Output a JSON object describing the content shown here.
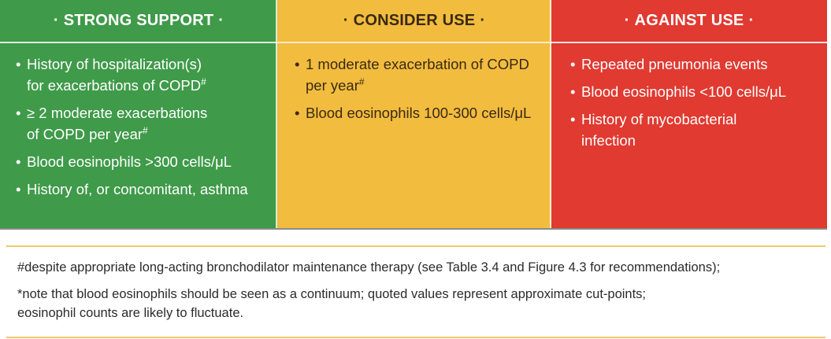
{
  "columns": {
    "strong": {
      "header": "STRONG SUPPORT",
      "items": [
        {
          "lines": [
            "History of hospitalization(s)",
            "for exacerbations of COPD"
          ],
          "sup": "#"
        },
        {
          "lines": [
            "≥ 2 moderate exacerbations",
            "of COPD per year"
          ],
          "sup": "#"
        },
        {
          "lines": [
            "Blood eosinophils >300 cells/μL"
          ],
          "sup": ""
        },
        {
          "lines": [
            "History of, or concomitant, asthma"
          ],
          "sup": ""
        }
      ]
    },
    "consider": {
      "header": "CONSIDER USE",
      "items": [
        {
          "lines": [
            "1 moderate exacerbation of COPD",
            "per year"
          ],
          "sup": "#"
        },
        {
          "lines": [
            "Blood eosinophils 100-300 cells/μL"
          ],
          "sup": ""
        }
      ]
    },
    "against": {
      "header": "AGAINST USE",
      "items": [
        {
          "lines": [
            "Repeated pneumonia events"
          ],
          "sup": ""
        },
        {
          "lines": [
            "Blood eosinophils <100 cells/μL"
          ],
          "sup": ""
        },
        {
          "lines": [
            "History of mycobacterial",
            "infection"
          ],
          "sup": ""
        }
      ]
    }
  },
  "footnotes": {
    "note1": "#despite appropriate long-acting bronchodilator maintenance therapy (see Table 3.4 and Figure 4.3 for recommendations);",
    "note2_lines": [
      "*note that blood eosinophils should be seen as a continuum; quoted values represent approximate cut-points;",
      "eosinophil counts are likely to fluctuate."
    ]
  },
  "colors": {
    "strong_bg": "#3f9a49",
    "consider_bg": "#f2bc3f",
    "against_bg": "#e03a31",
    "rule": "#f2c66a"
  }
}
